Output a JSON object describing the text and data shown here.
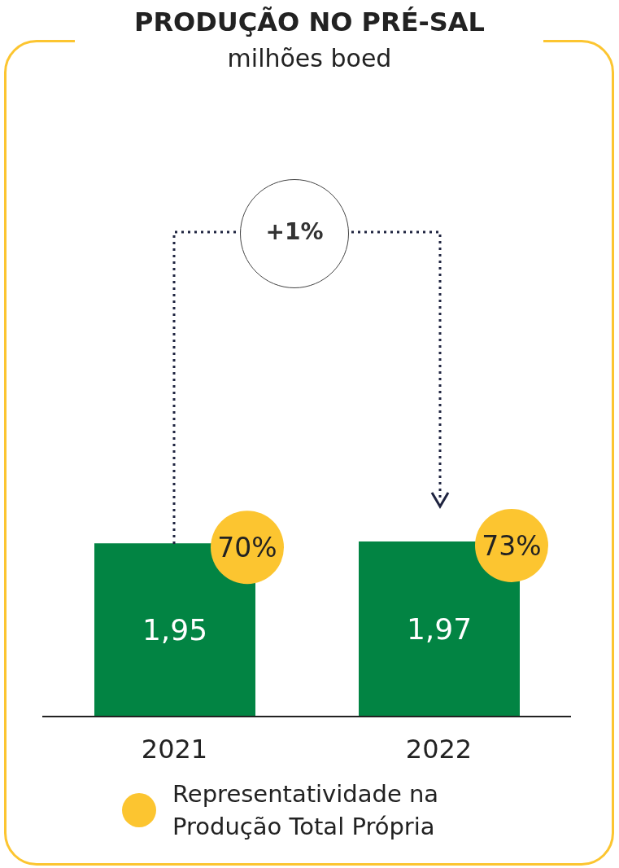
{
  "chart_data": {
    "type": "bar",
    "title": "PRODUÇÃO NO PRÉ-SAL",
    "subtitle": "milhões boed",
    "categories": [
      "2021",
      "2022"
    ],
    "series": [
      {
        "color": "#028443",
        "values": [
          1.95,
          1.97
        ],
        "value_labels": [
          "1,95",
          "1,97"
        ]
      }
    ],
    "annotations": [
      "+1%",
      "70%",
      "73%",
      "Representatividade na Produção Total Própria"
    ]
  }
}
